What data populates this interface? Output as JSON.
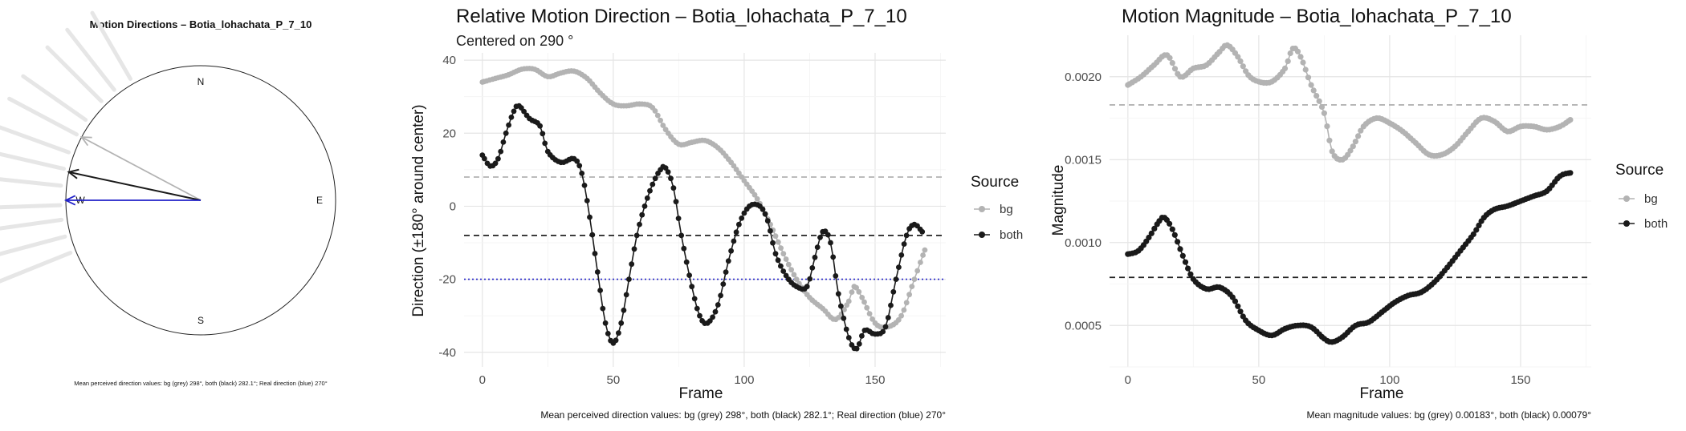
{
  "colors": {
    "bg": "#b3b3b3",
    "both": "#1a1a1a",
    "real": "#2020c8",
    "grid": "#ebebeb",
    "dash_bg": "#b3b3b3",
    "dash_both": "#222222"
  },
  "compass": {
    "title": "Motion Directions – Botia_lohachata_P_7_10",
    "labels": {
      "n": "N",
      "e": "E",
      "s": "S",
      "w": "W"
    },
    "caption": "Mean perceived direction values: bg (grey) 298°, both (black) 282.1°; Real direction (blue) 270°",
    "arrows": [
      {
        "name": "bg",
        "angle_deg": 298,
        "length": 1.0
      },
      {
        "name": "both",
        "angle_deg": 282.1,
        "length": 1.0
      },
      {
        "name": "real",
        "angle_deg": 270,
        "length": 1.0
      }
    ],
    "background_rays_deg": [
      290,
      298,
      305,
      315,
      322,
      330,
      283,
      276,
      268,
      262,
      255,
      248
    ]
  },
  "chart_data": [
    {
      "type": "line",
      "title": "Relative Motion Direction – Botia_lohachata_P_7_10",
      "subtitle": "Centered on  290 °",
      "xlabel": "Frame",
      "ylabel": "Direction (±180° around center)",
      "xlim": [
        -7,
        177
      ],
      "ylim": [
        -44,
        42
      ],
      "xticks": [
        0,
        50,
        100,
        150
      ],
      "yticks": [
        -40,
        -20,
        0,
        20,
        40
      ],
      "legend": {
        "title": "Source",
        "position": "right",
        "entries": [
          "bg",
          "both"
        ]
      },
      "hlines": [
        {
          "y": 8,
          "style": "dashed",
          "color": "bg"
        },
        {
          "y": -8,
          "style": "dashed",
          "color": "both"
        },
        {
          "y": -20,
          "style": "dotted",
          "color": "real"
        }
      ],
      "caption": "Mean perceived direction values: bg (grey) 298°, both (black) 282.1°; Real direction (blue) 270°",
      "series": [
        {
          "name": "bg",
          "points": [
            [
              0,
              34
            ],
            [
              5,
              35
            ],
            [
              10,
              36
            ],
            [
              15,
              37.5
            ],
            [
              20,
              37.5
            ],
            [
              25,
              35.5
            ],
            [
              30,
              36.5
            ],
            [
              35,
              37
            ],
            [
              40,
              35
            ],
            [
              45,
              31
            ],
            [
              50,
              28
            ],
            [
              55,
              27.5
            ],
            [
              60,
              28
            ],
            [
              65,
              27
            ],
            [
              70,
              21
            ],
            [
              75,
              17
            ],
            [
              80,
              17.5
            ],
            [
              85,
              18
            ],
            [
              90,
              16
            ],
            [
              95,
              12
            ],
            [
              100,
              7
            ],
            [
              105,
              2
            ],
            [
              110,
              -5
            ],
            [
              115,
              -13
            ],
            [
              120,
              -20
            ],
            [
              125,
              -25
            ],
            [
              130,
              -28
            ],
            [
              135,
              -31
            ],
            [
              140,
              -26
            ],
            [
              142,
              -22
            ],
            [
              145,
              -25
            ],
            [
              150,
              -32
            ],
            [
              155,
              -33
            ],
            [
              160,
              -30
            ],
            [
              165,
              -20
            ],
            [
              169,
              -12
            ]
          ]
        },
        {
          "name": "both",
          "points": [
            [
              0,
              14
            ],
            [
              3,
              11
            ],
            [
              6,
              13
            ],
            [
              9,
              20
            ],
            [
              12,
              26
            ],
            [
              14,
              27.5
            ],
            [
              18,
              24
            ],
            [
              22,
              22
            ],
            [
              25,
              15
            ],
            [
              30,
              12
            ],
            [
              35,
              13
            ],
            [
              38,
              9
            ],
            [
              41,
              -3
            ],
            [
              44,
              -18
            ],
            [
              47,
              -32
            ],
            [
              50,
              -37.5
            ],
            [
              53,
              -32
            ],
            [
              56,
              -20
            ],
            [
              59,
              -8
            ],
            [
              62,
              0
            ],
            [
              65,
              6
            ],
            [
              68,
              10
            ],
            [
              70,
              10.5
            ],
            [
              73,
              5
            ],
            [
              76,
              -8
            ],
            [
              80,
              -22
            ],
            [
              83,
              -30
            ],
            [
              86,
              -32
            ],
            [
              90,
              -27
            ],
            [
              94,
              -15
            ],
            [
              98,
              -5
            ],
            [
              102,
              0
            ],
            [
              106,
              0
            ],
            [
              109,
              -4
            ],
            [
              112,
              -13
            ],
            [
              116,
              -19
            ],
            [
              120,
              -22
            ],
            [
              124,
              -22
            ],
            [
              127,
              -14
            ],
            [
              130,
              -7
            ],
            [
              133,
              -10
            ],
            [
              136,
              -24
            ],
            [
              140,
              -36
            ],
            [
              143,
              -39
            ],
            [
              146,
              -34
            ],
            [
              150,
              -35
            ],
            [
              154,
              -33
            ],
            [
              158,
              -20
            ],
            [
              162,
              -8
            ],
            [
              165,
              -5
            ],
            [
              168,
              -7
            ]
          ]
        }
      ]
    },
    {
      "type": "line",
      "title": "Motion Magnitude – Botia_lohachata_P_7_10",
      "subtitle": "",
      "xlabel": "Frame",
      "ylabel": "Magnitude",
      "xlim": [
        -7,
        177
      ],
      "ylim": [
        0.00025,
        0.00225
      ],
      "xticks": [
        0,
        50,
        100,
        150
      ],
      "yticks": [
        0.0005,
        0.001,
        0.0015,
        0.002
      ],
      "ytick_labels": [
        "0.0005",
        "0.0010",
        "0.0015",
        "0.0020"
      ],
      "legend": {
        "title": "Source",
        "position": "right",
        "entries": [
          "bg",
          "both"
        ]
      },
      "hlines": [
        {
          "y": 0.00183,
          "style": "dashed",
          "color": "bg"
        },
        {
          "y": 0.00079,
          "style": "dashed",
          "color": "both"
        }
      ],
      "caption": "Mean magnitude values: bg (grey) 0.00183°, both (black) 0.00079°",
      "series": [
        {
          "name": "bg",
          "points": [
            [
              0,
              0.00195
            ],
            [
              5,
              0.002
            ],
            [
              10,
              0.00207
            ],
            [
              15,
              0.00213
            ],
            [
              20,
              0.002
            ],
            [
              25,
              0.00205
            ],
            [
              30,
              0.00207
            ],
            [
              35,
              0.00215
            ],
            [
              38,
              0.00219
            ],
            [
              42,
              0.00212
            ],
            [
              46,
              0.00201
            ],
            [
              50,
              0.00197
            ],
            [
              55,
              0.00197
            ],
            [
              60,
              0.00205
            ],
            [
              63,
              0.00217
            ],
            [
              66,
              0.00212
            ],
            [
              70,
              0.00195
            ],
            [
              75,
              0.00178
            ],
            [
              78,
              0.00155
            ],
            [
              82,
              0.0015
            ],
            [
              86,
              0.00158
            ],
            [
              90,
              0.0017
            ],
            [
              95,
              0.00175
            ],
            [
              100,
              0.00172
            ],
            [
              105,
              0.00167
            ],
            [
              110,
              0.0016
            ],
            [
              115,
              0.00153
            ],
            [
              120,
              0.00153
            ],
            [
              125,
              0.00158
            ],
            [
              130,
              0.00167
            ],
            [
              135,
              0.00175
            ],
            [
              140,
              0.00173
            ],
            [
              145,
              0.00167
            ],
            [
              150,
              0.0017
            ],
            [
              155,
              0.0017
            ],
            [
              160,
              0.00168
            ],
            [
              165,
              0.0017
            ],
            [
              169,
              0.00174
            ]
          ]
        },
        {
          "name": "both",
          "points": [
            [
              0,
              0.00093
            ],
            [
              4,
              0.00095
            ],
            [
              8,
              0.00103
            ],
            [
              12,
              0.00113
            ],
            [
              14,
              0.00115
            ],
            [
              17,
              0.00108
            ],
            [
              21,
              0.00092
            ],
            [
              25,
              0.00078
            ],
            [
              30,
              0.00072
            ],
            [
              35,
              0.00073
            ],
            [
              40,
              0.00067
            ],
            [
              45,
              0.00053
            ],
            [
              50,
              0.00047
            ],
            [
              55,
              0.00044
            ],
            [
              60,
              0.00048
            ],
            [
              65,
              0.0005
            ],
            [
              70,
              0.00049
            ],
            [
              75,
              0.00042
            ],
            [
              78,
              0.0004
            ],
            [
              82,
              0.00043
            ],
            [
              87,
              0.0005
            ],
            [
              92,
              0.00052
            ],
            [
              97,
              0.00058
            ],
            [
              102,
              0.00064
            ],
            [
              107,
              0.00068
            ],
            [
              112,
              0.0007
            ],
            [
              117,
              0.00076
            ],
            [
              122,
              0.00085
            ],
            [
              127,
              0.00095
            ],
            [
              132,
              0.00105
            ],
            [
              136,
              0.00115
            ],
            [
              140,
              0.0012
            ],
            [
              145,
              0.00122
            ],
            [
              150,
              0.00125
            ],
            [
              155,
              0.00128
            ],
            [
              160,
              0.00131
            ],
            [
              165,
              0.0014
            ],
            [
              169,
              0.00142
            ]
          ]
        }
      ]
    }
  ]
}
